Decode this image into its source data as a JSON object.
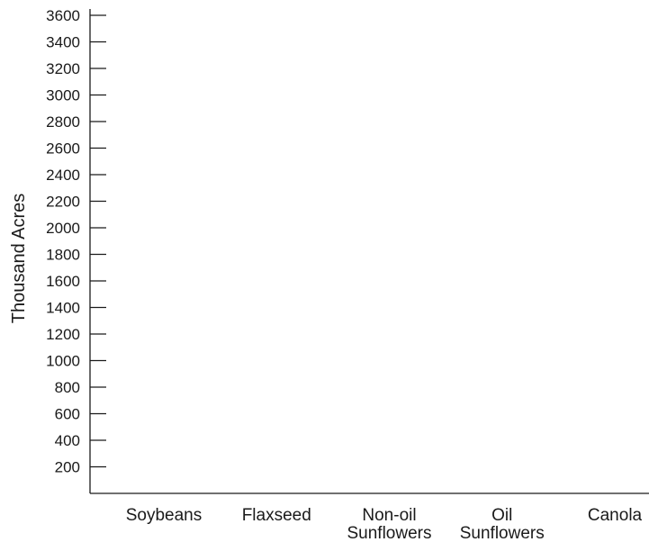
{
  "chart_data": {
    "type": "bar",
    "title": "",
    "xlabel": "",
    "ylabel": "Thousand Acres",
    "categories": [
      [
        "Soybeans"
      ],
      [
        "Flaxseed"
      ],
      [
        "Non-oil",
        "Sunflowers"
      ],
      [
        "Oil",
        "Sunflowers"
      ],
      [
        "Canola"
      ]
    ],
    "yticks": [
      200,
      400,
      600,
      800,
      1000,
      1200,
      1400,
      1600,
      1800,
      2000,
      2200,
      2400,
      2600,
      2800,
      3000,
      3200,
      3400,
      3600
    ],
    "ylim": [
      0,
      3600
    ],
    "series": [],
    "grid": false
  },
  "colors": {
    "axis": "#1a1a1a",
    "background": "#ffffff"
  }
}
